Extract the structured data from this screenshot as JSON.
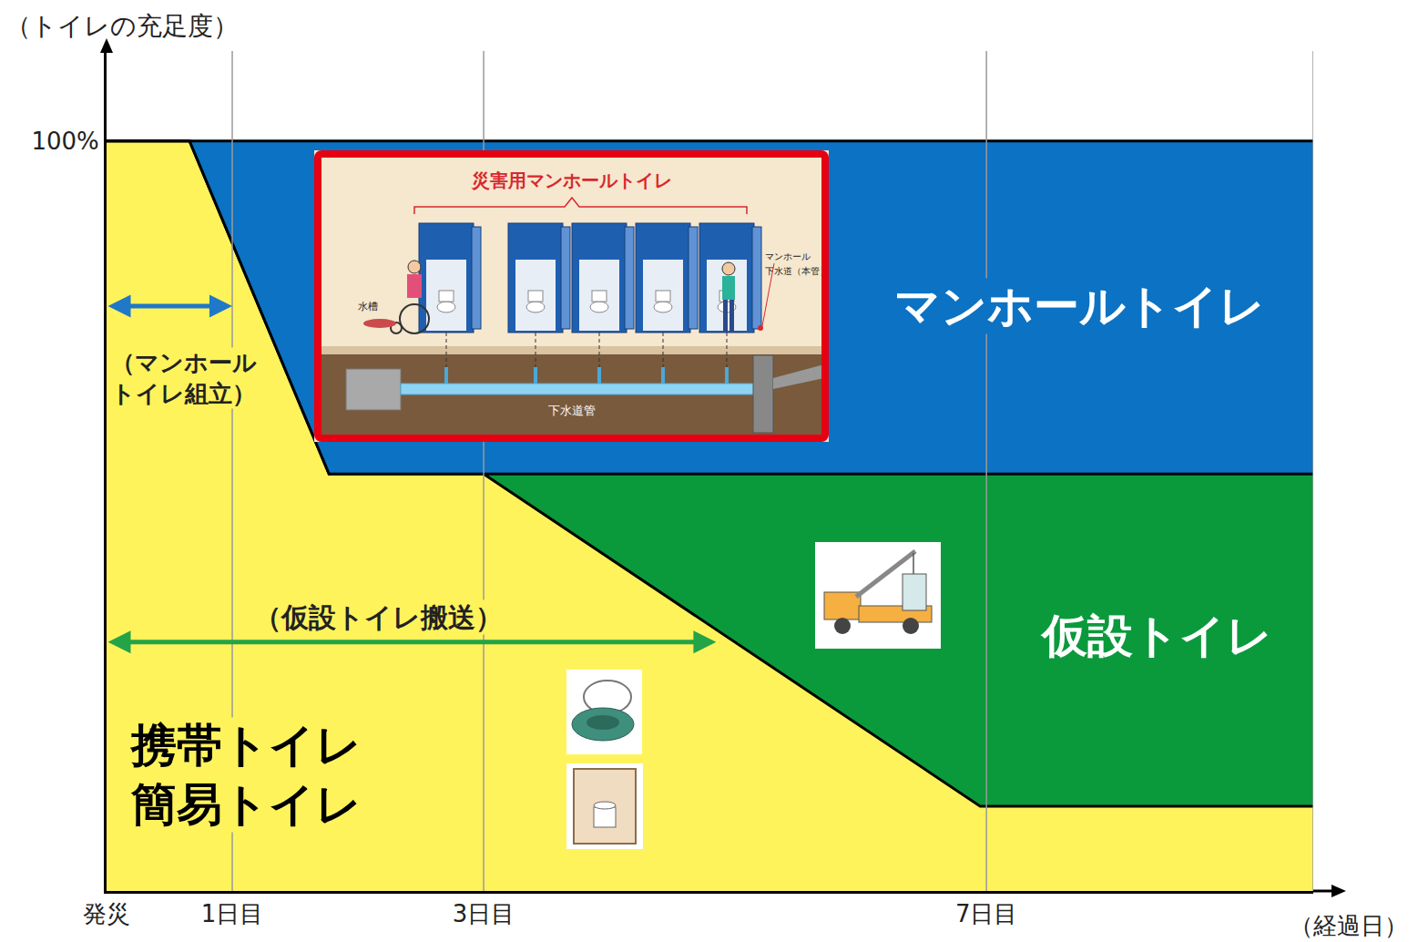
{
  "chart_data": {
    "type": "area",
    "stacked": true,
    "xlabel": "（経過日）",
    "ylabel": "（トイレの充足度）",
    "x": [
      0,
      0.66,
      1.77,
      3,
      6.95,
      9.6
    ],
    "xlim": [
      0,
      9.6
    ],
    "xticks": [
      {
        "value": 0,
        "label": "発災"
      },
      {
        "value": 1,
        "label": "1日目"
      },
      {
        "value": 3,
        "label": "3日目"
      },
      {
        "value": 7,
        "label": "7日目"
      }
    ],
    "ylim": [
      0,
      112
    ],
    "yticks": [
      {
        "value": 100,
        "label": "100%"
      }
    ],
    "grid": true,
    "series": [
      {
        "name": "携帯トイレ 簡易トイレ",
        "color": "#fff35c",
        "values": [
          100,
          100,
          55.6,
          55.6,
          11.3,
          11.3
        ]
      },
      {
        "name": "仮設トイレ",
        "color": "#0a9a3c",
        "values": [
          0,
          0,
          0,
          0,
          44.3,
          44.3
        ]
      },
      {
        "name": "マンホールトイレ",
        "color": "#0b72c4",
        "values": [
          0,
          0,
          44.4,
          44.4,
          44.4,
          44.4
        ]
      }
    ],
    "annotations": [
      {
        "text": [
          "（マンホール",
          "トイレ組立）"
        ],
        "span": [
          0,
          1
        ],
        "color": "#1f78c8"
      },
      {
        "text": [
          "（仮設トイレ搬送）"
        ],
        "span": [
          0,
          4.85
        ],
        "color": "#22a447"
      }
    ]
  },
  "inset": {
    "title": "災害用マンホールトイレ",
    "tank": "水槽",
    "manhole": "マンホール",
    "main": "下水道（本管）",
    "pipe": "下水道管"
  }
}
